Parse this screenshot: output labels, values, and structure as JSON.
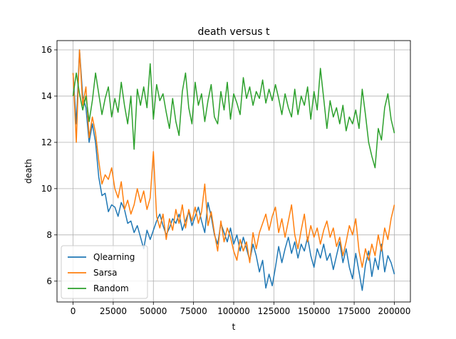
{
  "chart_data": {
    "type": "line",
    "title": "death versus t",
    "xlabel": "t",
    "ylabel": "death",
    "xlim": [
      -10000,
      210000
    ],
    "ylim": [
      5.1,
      16.4
    ],
    "xticks": [
      0,
      25000,
      50000,
      75000,
      100000,
      125000,
      150000,
      175000,
      200000
    ],
    "yticks": [
      6,
      8,
      10,
      12,
      14,
      16
    ],
    "grid": true,
    "legend_position": "lower left",
    "x": [
      0,
      2000,
      4000,
      6000,
      8000,
      10000,
      12000,
      14000,
      16000,
      18000,
      20000,
      22000,
      24000,
      26000,
      28000,
      30000,
      32000,
      34000,
      36000,
      38000,
      40000,
      42000,
      44000,
      46000,
      48000,
      50000,
      52000,
      54000,
      56000,
      58000,
      60000,
      62000,
      64000,
      66000,
      68000,
      70000,
      72000,
      74000,
      76000,
      78000,
      80000,
      82000,
      84000,
      86000,
      88000,
      90000,
      92000,
      94000,
      96000,
      98000,
      100000,
      102000,
      104000,
      106000,
      108000,
      110000,
      112000,
      114000,
      116000,
      118000,
      120000,
      122000,
      124000,
      126000,
      128000,
      130000,
      132000,
      134000,
      136000,
      138000,
      140000,
      142000,
      144000,
      146000,
      148000,
      150000,
      152000,
      154000,
      156000,
      158000,
      160000,
      162000,
      164000,
      166000,
      168000,
      170000,
      172000,
      174000,
      176000,
      178000,
      180000,
      182000,
      184000,
      186000,
      188000,
      190000,
      192000,
      194000,
      196000,
      198000,
      200000
    ],
    "series": [
      {
        "name": "Qlearning",
        "color": "#1f77b4",
        "values": [
          15.0,
          12.8,
          16.0,
          14.0,
          13.5,
          12.0,
          12.8,
          12.0,
          10.5,
          9.7,
          9.8,
          9.0,
          9.3,
          9.2,
          8.8,
          9.4,
          9.1,
          8.5,
          8.6,
          8.1,
          8.4,
          7.9,
          7.4,
          8.2,
          7.8,
          8.2,
          8.6,
          8.9,
          8.4,
          8.0,
          8.3,
          8.7,
          8.5,
          8.9,
          8.2,
          8.6,
          9.0,
          8.4,
          8.8,
          9.2,
          8.6,
          8.1,
          9.4,
          8.8,
          8.0,
          7.6,
          8.5,
          8.1,
          7.7,
          8.3,
          7.6,
          8.0,
          7.3,
          7.9,
          7.4,
          6.9,
          7.6,
          7.1,
          6.4,
          6.9,
          5.7,
          6.3,
          5.8,
          6.6,
          7.5,
          6.8,
          7.4,
          7.9,
          7.2,
          7.7,
          7.0,
          7.6,
          7.3,
          7.9,
          7.1,
          6.6,
          7.4,
          7.0,
          7.6,
          6.9,
          7.2,
          6.5,
          7.1,
          7.7,
          6.8,
          7.4,
          6.6,
          6.1,
          7.2,
          6.4,
          5.6,
          6.7,
          7.3,
          6.2,
          7.0,
          6.5,
          7.6,
          6.4,
          7.1,
          6.8,
          6.3
        ]
      },
      {
        "name": "Sarsa",
        "color": "#ff7f0e",
        "values": [
          15.0,
          12.0,
          16.0,
          13.6,
          14.4,
          12.2,
          13.1,
          12.4,
          11.2,
          10.2,
          10.6,
          10.4,
          10.9,
          10.0,
          9.6,
          10.3,
          9.1,
          9.5,
          8.9,
          9.3,
          10.0,
          9.4,
          9.9,
          9.1,
          9.6,
          11.6,
          8.8,
          8.3,
          8.9,
          7.8,
          8.7,
          8.2,
          9.1,
          8.5,
          9.3,
          8.3,
          9.1,
          8.6,
          9.2,
          8.5,
          9.0,
          10.2,
          8.4,
          9.0,
          8.1,
          7.3,
          8.6,
          7.7,
          8.3,
          7.9,
          7.3,
          6.9,
          7.8,
          7.3,
          7.7,
          6.8,
          8.1,
          7.4,
          8.1,
          8.5,
          8.9,
          8.2,
          8.8,
          9.2,
          8.1,
          8.7,
          7.9,
          8.6,
          9.3,
          8.0,
          7.4,
          8.2,
          8.9,
          7.7,
          8.4,
          7.9,
          8.3,
          7.6,
          8.2,
          8.6,
          7.9,
          8.3,
          7.5,
          7.9,
          7.1,
          7.7,
          8.4,
          8.0,
          8.7,
          7.3,
          6.6,
          7.4,
          6.9,
          7.6,
          7.1,
          8.0,
          7.3,
          8.3,
          7.8,
          8.7,
          9.3
        ]
      },
      {
        "name": "Random",
        "color": "#2ca02c",
        "values": [
          14.0,
          15.0,
          14.1,
          13.4,
          14.0,
          12.9,
          13.8,
          15.0,
          14.1,
          13.2,
          13.9,
          14.4,
          13.1,
          13.9,
          13.3,
          14.6,
          13.6,
          12.8,
          14.0,
          11.7,
          14.3,
          13.6,
          14.4,
          13.5,
          15.4,
          13.0,
          14.5,
          13.8,
          14.1,
          13.3,
          12.6,
          13.9,
          12.9,
          12.3,
          14.2,
          15.0,
          13.5,
          12.8,
          14.6,
          13.6,
          14.1,
          12.9,
          13.8,
          14.5,
          13.1,
          12.8,
          14.2,
          13.4,
          14.6,
          13.0,
          14.1,
          13.7,
          13.2,
          14.8,
          13.9,
          14.4,
          13.6,
          14.2,
          13.9,
          14.7,
          13.7,
          14.3,
          13.8,
          14.5,
          13.9,
          13.2,
          14.1,
          13.5,
          13.1,
          14.3,
          13.2,
          14.0,
          13.6,
          14.4,
          13.0,
          14.2,
          13.4,
          15.2,
          13.9,
          12.6,
          13.8,
          13.1,
          13.5,
          12.8,
          13.6,
          12.5,
          13.1,
          12.8,
          13.4,
          12.6,
          14.3,
          13.2,
          12.0,
          11.4,
          10.9,
          12.6,
          12.1,
          13.5,
          14.1,
          13.0,
          12.4
        ]
      }
    ]
  }
}
